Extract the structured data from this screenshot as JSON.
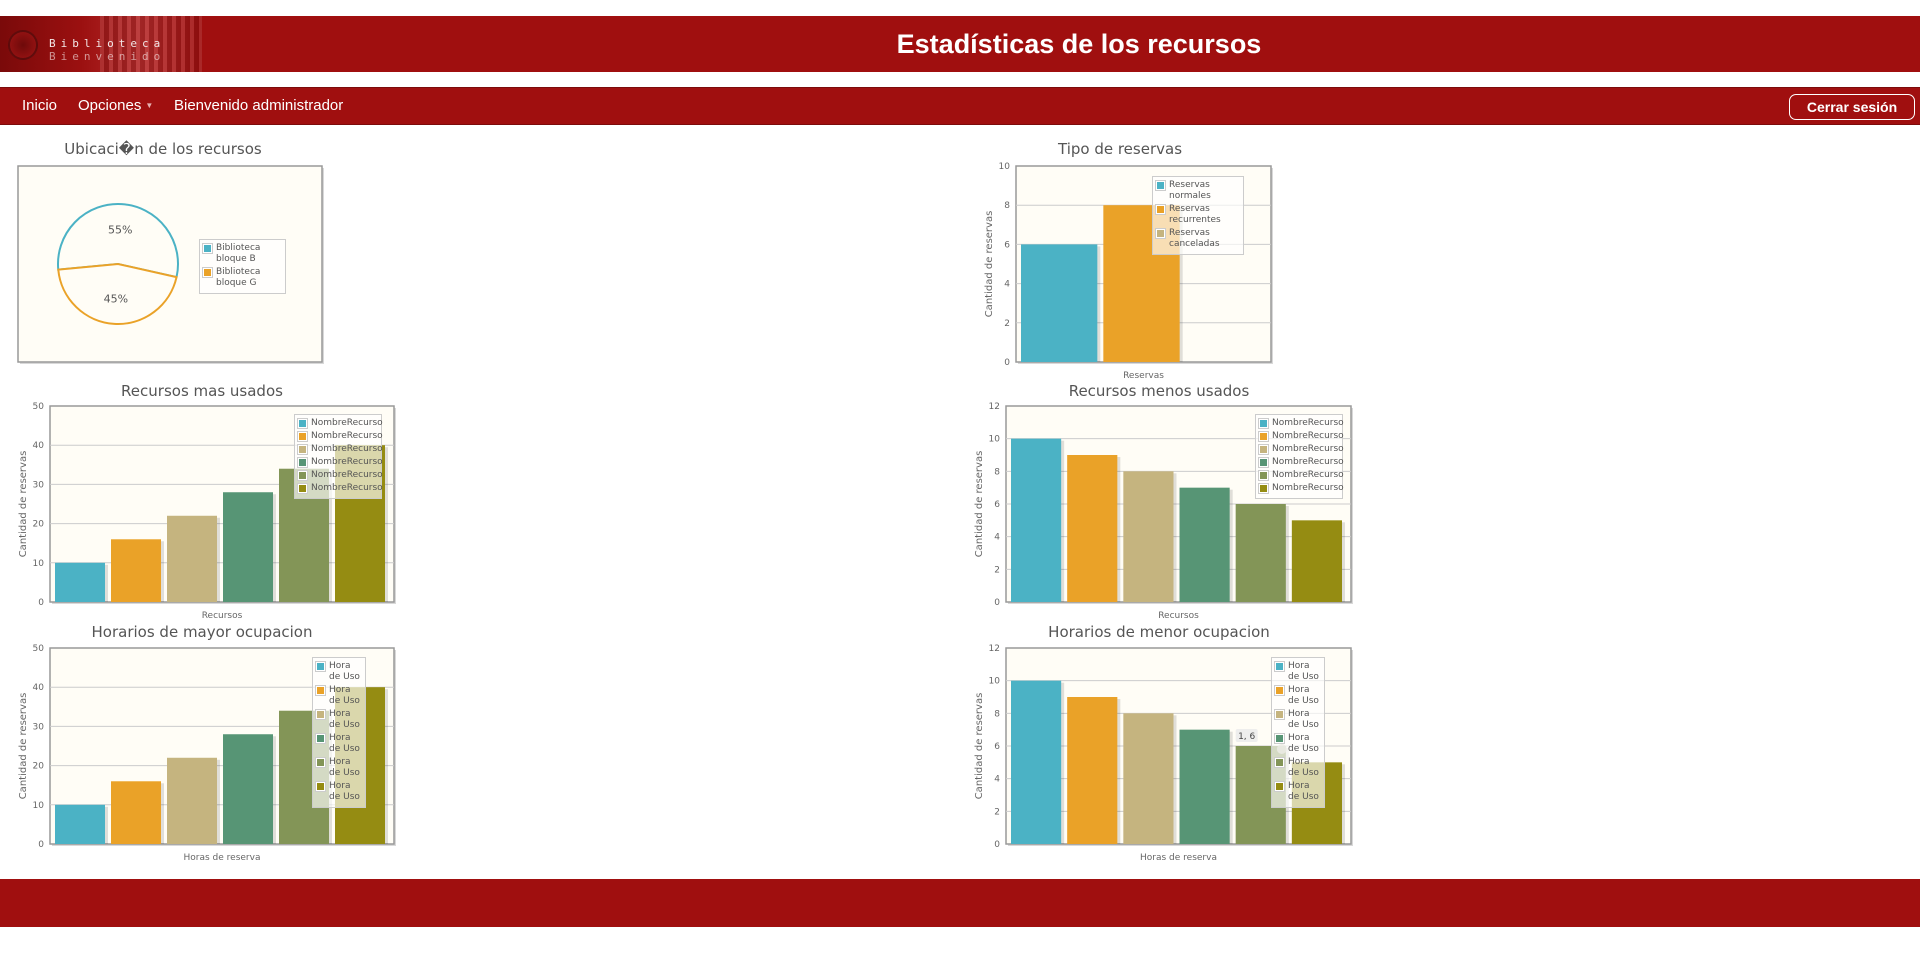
{
  "header": {
    "logo_line1": "Biblioteca",
    "logo_line2": "Bienvenido",
    "title": "Estadísticas de los recursos"
  },
  "nav": {
    "home": "Inicio",
    "options": "Opciones",
    "welcome": "Bienvenido administrador",
    "logout": "Cerrar sesión"
  },
  "colors": {
    "brand": "#a00f0f",
    "plot_background": "#fffdf6",
    "series": [
      "#4bb2c5",
      "#eaa228",
      "#c5b47f",
      "#579575",
      "#839557",
      "#958c12"
    ]
  },
  "chart_data": [
    {
      "type": "pie",
      "title": "Ubicaci�n de los recursos",
      "categories": [
        "Biblioteca bloque B",
        "Biblioteca bloque G"
      ],
      "values": [
        55,
        45
      ],
      "slice_labels": [
        "55%",
        "45%"
      ],
      "legend": "right"
    },
    {
      "type": "bar",
      "title": "Tipo de reservas",
      "xlabel": "Reservas",
      "ylabel": "Cantidad de reservas",
      "ylim": [
        0,
        10
      ],
      "yticks": [
        0,
        2,
        4,
        6,
        8,
        10
      ],
      "series": [
        {
          "name": "Reservas normales",
          "values": [
            6
          ]
        },
        {
          "name": "Reservas recurrentes",
          "values": [
            8
          ]
        },
        {
          "name": "Reservas canceladas",
          "values": [
            0
          ]
        }
      ],
      "legend": "top-right"
    },
    {
      "type": "bar",
      "title": "Recursos mas usados",
      "xlabel": "Recursos",
      "ylabel": "Cantidad de reservas",
      "ylim": [
        0,
        50
      ],
      "yticks": [
        0,
        10,
        20,
        30,
        40,
        50
      ],
      "series": [
        {
          "name": "NombreRecurso",
          "values": [
            10
          ]
        },
        {
          "name": "NombreRecurso",
          "values": [
            16
          ]
        },
        {
          "name": "NombreRecurso",
          "values": [
            22
          ]
        },
        {
          "name": "NombreRecurso",
          "values": [
            28
          ]
        },
        {
          "name": "NombreRecurso",
          "values": [
            34
          ]
        },
        {
          "name": "NombreRecurso",
          "values": [
            40
          ]
        }
      ],
      "legend": "top-right"
    },
    {
      "type": "bar",
      "title": "Recursos menos usados",
      "xlabel": "Recursos",
      "ylabel": "Cantidad de reservas",
      "ylim": [
        0,
        12
      ],
      "yticks": [
        0,
        2,
        4,
        6,
        8,
        10,
        12
      ],
      "series": [
        {
          "name": "NombreRecurso",
          "values": [
            10
          ]
        },
        {
          "name": "NombreRecurso",
          "values": [
            9
          ]
        },
        {
          "name": "NombreRecurso",
          "values": [
            8
          ]
        },
        {
          "name": "NombreRecurso",
          "values": [
            7
          ]
        },
        {
          "name": "NombreRecurso",
          "values": [
            6
          ]
        },
        {
          "name": "NombreRecurso",
          "values": [
            5
          ]
        }
      ],
      "legend": "top-right"
    },
    {
      "type": "bar",
      "title": "Horarios de mayor ocupacion",
      "xlabel": "Horas de reserva",
      "ylabel": "Cantidad de reservas",
      "ylim": [
        0,
        50
      ],
      "yticks": [
        0,
        10,
        20,
        30,
        40,
        50
      ],
      "series": [
        {
          "name": "Hora de Uso",
          "values": [
            10
          ]
        },
        {
          "name": "Hora de Uso",
          "values": [
            16
          ]
        },
        {
          "name": "Hora de Uso",
          "values": [
            22
          ]
        },
        {
          "name": "Hora de Uso",
          "values": [
            28
          ]
        },
        {
          "name": "Hora de Uso",
          "values": [
            34
          ]
        },
        {
          "name": "Hora de Uso",
          "values": [
            40
          ]
        }
      ],
      "legend": "top-right"
    },
    {
      "type": "bar",
      "title": "Horarios de menor ocupacion",
      "xlabel": "Horas de reserva",
      "ylabel": "Cantidad de reservas",
      "ylim": [
        0,
        12
      ],
      "yticks": [
        0,
        2,
        4,
        6,
        8,
        10,
        12
      ],
      "series": [
        {
          "name": "Hora de Uso",
          "values": [
            10
          ]
        },
        {
          "name": "Hora de Uso",
          "values": [
            9
          ]
        },
        {
          "name": "Hora de Uso",
          "values": [
            8
          ]
        },
        {
          "name": "Hora de Uso",
          "values": [
            7
          ]
        },
        {
          "name": "Hora de Uso",
          "values": [
            6
          ]
        },
        {
          "name": "Hora de Uso",
          "values": [
            5
          ]
        }
      ],
      "tooltip": "1, 6",
      "legend": "top-right"
    }
  ]
}
